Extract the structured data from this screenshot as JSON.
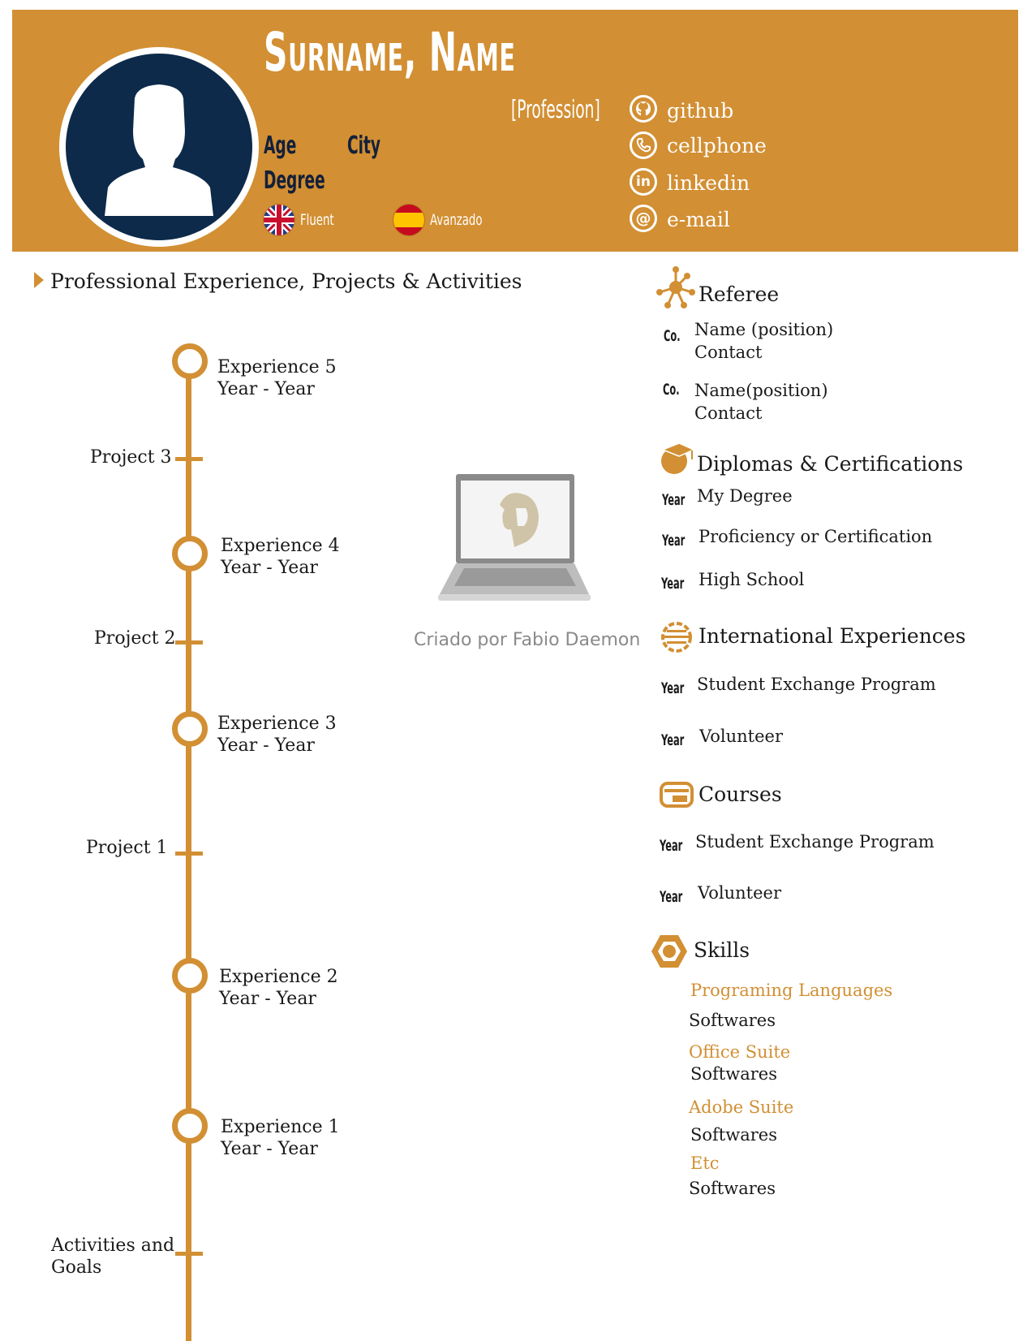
{
  "header": {
    "name": "Surname, Name",
    "profession": "[Profession]",
    "age": "Age",
    "city": "City",
    "degree": "Degree",
    "languages": [
      {
        "label": "Fluent",
        "flag": "uk-flag-icon"
      },
      {
        "label": "Avanzado",
        "flag": "spain-flag-icon"
      }
    ],
    "contacts": [
      {
        "icon": "github-icon",
        "label": "github"
      },
      {
        "icon": "phone-icon",
        "label": "cellphone"
      },
      {
        "icon": "linkedin-icon",
        "label": "linkedin"
      },
      {
        "icon": "email-icon",
        "label": "e-mail"
      }
    ]
  },
  "experience": {
    "title": "Professional Experience, Projects & Activities",
    "entries": [
      {
        "title": "Experience 5",
        "dates": "Year - Year"
      },
      {
        "title": "Experience 4",
        "dates": "Year - Year"
      },
      {
        "title": "Experience 3",
        "dates": "Year - Year"
      },
      {
        "title": "Experience 2",
        "dates": "Year - Year"
      },
      {
        "title": "Experience 1",
        "dates": "Year - Year"
      }
    ],
    "projects": [
      "Project 3",
      "Project 2",
      "Project 1"
    ],
    "activities": [
      "Activities and",
      "Goals"
    ]
  },
  "watermark": {
    "caption": "Criado por Fabio Daemon"
  },
  "referee": {
    "title": "Referee",
    "items": [
      {
        "prefix": "Co.",
        "name": "Name (position)",
        "contact": "Contact"
      },
      {
        "prefix": "Co.",
        "name": "Name(position)",
        "contact": "Contact"
      }
    ]
  },
  "diplomas": {
    "title": "Diplomas & Certifications",
    "items": [
      {
        "year": "Year",
        "label": "My Degree"
      },
      {
        "year": "Year",
        "label": "Proficiency or Certification"
      },
      {
        "year": "Year",
        "label": "High School"
      }
    ]
  },
  "international": {
    "title": "International Experiences",
    "items": [
      {
        "year": "Year",
        "label": "Student Exchange Program"
      },
      {
        "year": "Year",
        "label": "Volunteer"
      }
    ]
  },
  "courses": {
    "title": "Courses",
    "items": [
      {
        "year": "Year",
        "label": "Student Exchange Program"
      },
      {
        "year": "Year",
        "label": "Volunteer"
      }
    ]
  },
  "skills": {
    "title": "Skills",
    "items": [
      {
        "category": "Programing Languages",
        "value": "Softwares"
      },
      {
        "category": "Office Suite",
        "value": "Softwares"
      },
      {
        "category": "Adobe Suite",
        "value": "Softwares"
      },
      {
        "category": "Etc",
        "value": "Softwares"
      }
    ]
  },
  "colors": {
    "accent": "#d28f33",
    "navy": "#0d2a4a",
    "white": "#ffffff"
  }
}
